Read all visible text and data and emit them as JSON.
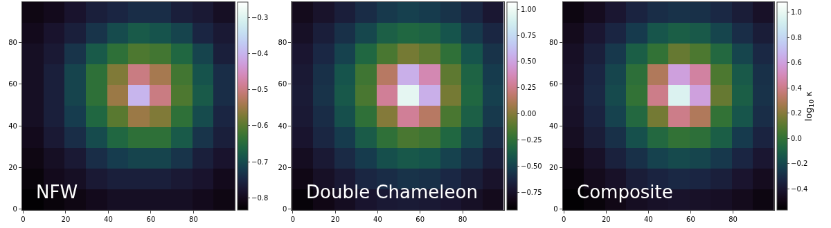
{
  "chart_data": [
    {
      "type": "heatmap",
      "title": "NFW",
      "xlim": [
        -0.5,
        99.5
      ],
      "ylim": [
        -0.5,
        99.5
      ],
      "xticks": [
        0,
        20,
        40,
        60,
        80
      ],
      "yticks": [
        0,
        20,
        40,
        60,
        80
      ],
      "clim": [
        -0.834,
        -0.258
      ],
      "cticks": [
        -0.8,
        -0.7,
        -0.6,
        -0.5,
        -0.4,
        -0.3
      ],
      "cells": [
        [
          -0.81,
          -0.8,
          -0.78,
          -0.76,
          -0.75,
          -0.74,
          -0.74,
          -0.76,
          -0.77,
          -0.79
        ],
        [
          -0.8,
          -0.78,
          -0.76,
          -0.73,
          -0.7,
          -0.68,
          -0.69,
          -0.71,
          -0.75,
          -0.77
        ],
        [
          -0.79,
          -0.77,
          -0.73,
          -0.68,
          -0.64,
          -0.61,
          -0.62,
          -0.66,
          -0.71,
          -0.76
        ],
        [
          -0.79,
          -0.76,
          -0.71,
          -0.64,
          -0.57,
          -0.5,
          -0.54,
          -0.62,
          -0.69,
          -0.74
        ],
        [
          -0.79,
          -0.76,
          -0.71,
          -0.64,
          -0.55,
          -0.4,
          -0.5,
          -0.61,
          -0.68,
          -0.74
        ],
        [
          -0.79,
          -0.76,
          -0.72,
          -0.66,
          -0.6,
          -0.55,
          -0.57,
          -0.64,
          -0.7,
          -0.75
        ],
        [
          -0.8,
          -0.77,
          -0.74,
          -0.7,
          -0.66,
          -0.64,
          -0.64,
          -0.68,
          -0.73,
          -0.76
        ],
        [
          -0.81,
          -0.79,
          -0.77,
          -0.74,
          -0.72,
          -0.71,
          -0.71,
          -0.73,
          -0.76,
          -0.78
        ],
        [
          -0.82,
          -0.8,
          -0.79,
          -0.77,
          -0.76,
          -0.76,
          -0.76,
          -0.77,
          -0.78,
          -0.8
        ],
        [
          -0.83,
          -0.82,
          -0.81,
          -0.8,
          -0.79,
          -0.79,
          -0.79,
          -0.79,
          -0.8,
          -0.81
        ]
      ]
    },
    {
      "type": "heatmap",
      "title": "Double Chameleon",
      "xlim": [
        -0.5,
        99.5
      ],
      "ylim": [
        -0.5,
        99.5
      ],
      "xticks": [
        0,
        20,
        40,
        60,
        80
      ],
      "yticks": [
        0,
        20,
        40,
        60,
        80
      ],
      "clim": [
        -0.92,
        1.065
      ],
      "cticks": [
        {
          "value": -0.75,
          "label": "−0.75"
        },
        {
          "value": -0.5,
          "label": "−0.50"
        },
        {
          "value": -0.25,
          "label": "−0.25"
        },
        {
          "value": 0,
          "label": "0.00"
        },
        {
          "value": 0.25,
          "label": "0.25"
        },
        {
          "value": 0.5,
          "label": "0.50"
        },
        {
          "value": 0.75,
          "label": "0.75"
        },
        {
          "value": 1,
          "label": "1.00"
        }
      ],
      "cells": [
        [
          -0.8,
          -0.74,
          -0.67,
          -0.6,
          -0.54,
          -0.51,
          -0.53,
          -0.57,
          -0.63,
          -0.71
        ],
        [
          -0.76,
          -0.67,
          -0.58,
          -0.48,
          -0.36,
          -0.32,
          -0.34,
          -0.42,
          -0.54,
          -0.63
        ],
        [
          -0.72,
          -0.62,
          -0.5,
          -0.32,
          -0.16,
          -0.04,
          -0.1,
          -0.25,
          -0.42,
          -0.57
        ],
        [
          -0.7,
          -0.58,
          -0.42,
          -0.19,
          0.15,
          0.55,
          0.35,
          -0.1,
          -0.34,
          -0.53
        ],
        [
          -0.69,
          -0.57,
          -0.4,
          -0.16,
          0.28,
          0.95,
          0.55,
          -0.04,
          -0.32,
          -0.51
        ],
        [
          -0.7,
          -0.6,
          -0.44,
          -0.25,
          0.0,
          0.28,
          0.15,
          -0.16,
          -0.36,
          -0.54
        ],
        [
          -0.73,
          -0.63,
          -0.53,
          -0.38,
          -0.25,
          -0.16,
          -0.19,
          -0.32,
          -0.48,
          -0.6
        ],
        [
          -0.78,
          -0.7,
          -0.61,
          -0.53,
          -0.44,
          -0.4,
          -0.42,
          -0.5,
          -0.58,
          -0.67
        ],
        [
          -0.83,
          -0.76,
          -0.7,
          -0.63,
          -0.6,
          -0.57,
          -0.58,
          -0.62,
          -0.68,
          -0.74
        ],
        [
          -0.88,
          -0.83,
          -0.78,
          -0.73,
          -0.7,
          -0.69,
          -0.7,
          -0.72,
          -0.76,
          -0.8
        ]
      ]
    },
    {
      "type": "heatmap",
      "title": "Composite",
      "xlim": [
        -0.5,
        99.5
      ],
      "ylim": [
        -0.5,
        99.5
      ],
      "xticks": [
        0,
        20,
        40,
        60,
        80
      ],
      "yticks": [
        0,
        20,
        40,
        60,
        80
      ],
      "clim": [
        -0.57,
        1.08
      ],
      "cticks": [
        -0.4,
        -0.2,
        {
          "value": 0,
          "label": "0.0"
        },
        0.2,
        0.4,
        0.6,
        0.8,
        {
          "value": 1,
          "label": "1.0"
        }
      ],
      "clabel": "log$_{10}$ κ",
      "cells": [
        [
          -0.51,
          -0.46,
          -0.4,
          -0.34,
          -0.3,
          -0.28,
          -0.29,
          -0.32,
          -0.37,
          -0.43
        ],
        [
          -0.47,
          -0.4,
          -0.33,
          -0.25,
          -0.15,
          -0.11,
          -0.13,
          -0.21,
          -0.3,
          -0.37
        ],
        [
          -0.44,
          -0.36,
          -0.26,
          -0.11,
          0.0,
          0.13,
          0.07,
          -0.06,
          -0.21,
          -0.32
        ],
        [
          -0.43,
          -0.33,
          -0.21,
          -0.02,
          0.3,
          0.6,
          0.45,
          0.07,
          -0.13,
          -0.29
        ],
        [
          -0.42,
          -0.32,
          -0.19,
          0.0,
          0.4,
          0.95,
          0.6,
          0.13,
          -0.11,
          -0.28
        ],
        [
          -0.43,
          -0.34,
          -0.22,
          -0.06,
          0.16,
          0.4,
          0.3,
          0.0,
          -0.15,
          -0.3
        ],
        [
          -0.45,
          -0.37,
          -0.29,
          -0.17,
          -0.06,
          0.0,
          -0.02,
          -0.11,
          -0.25,
          -0.34
        ],
        [
          -0.49,
          -0.43,
          -0.35,
          -0.29,
          -0.22,
          -0.19,
          -0.21,
          -0.26,
          -0.33,
          -0.4
        ],
        [
          -0.53,
          -0.47,
          -0.43,
          -0.37,
          -0.34,
          -0.32,
          -0.33,
          -0.36,
          -0.41,
          -0.46
        ],
        [
          -0.56,
          -0.53,
          -0.49,
          -0.45,
          -0.43,
          -0.42,
          -0.43,
          -0.44,
          -0.47,
          -0.51
        ]
      ]
    }
  ]
}
